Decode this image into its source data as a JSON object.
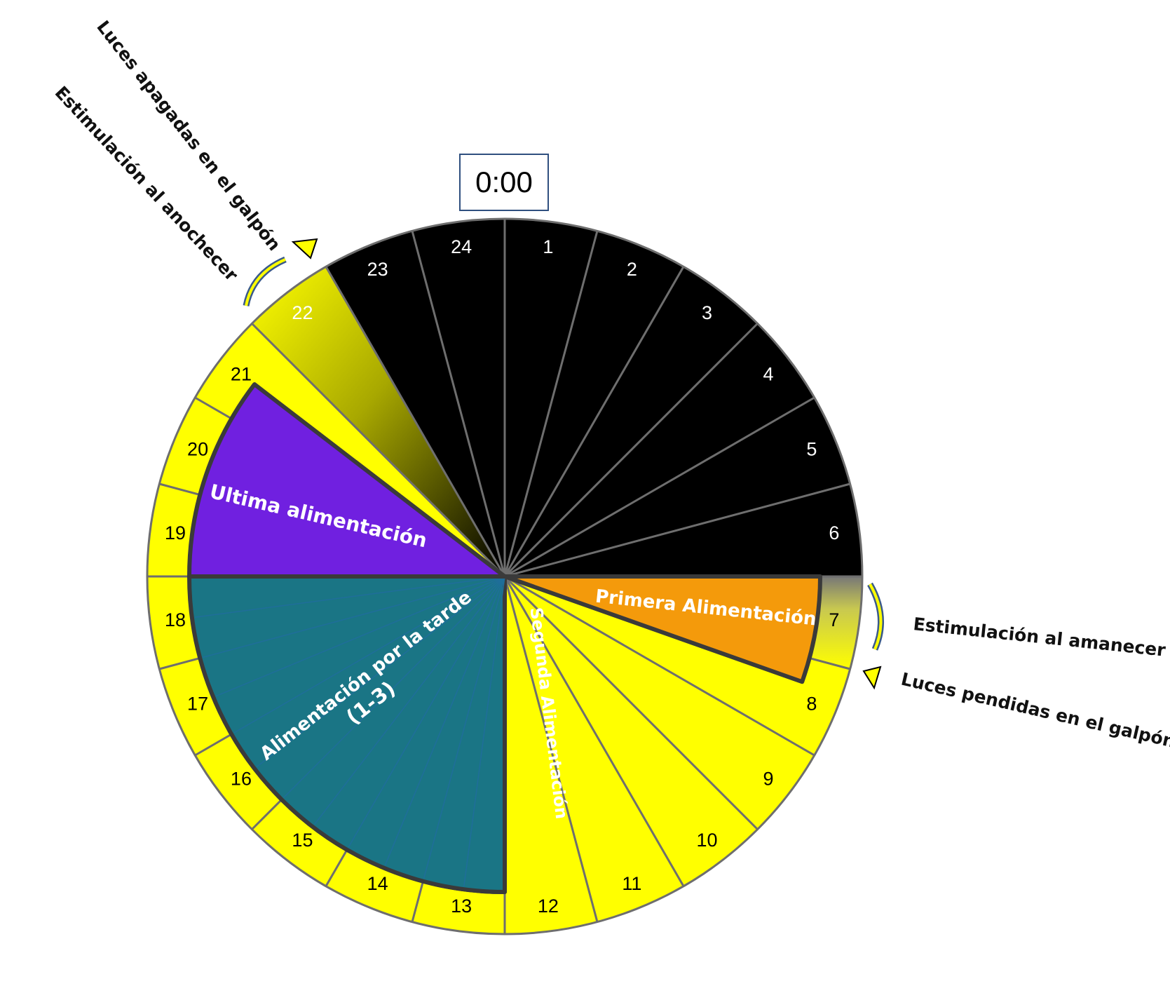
{
  "time_label": "0:00",
  "hours": [
    "1",
    "2",
    "3",
    "4",
    "5",
    "6",
    "7",
    "8",
    "9",
    "10",
    "11",
    "12",
    "13",
    "14",
    "15",
    "16",
    "17",
    "18",
    "19",
    "20",
    "21",
    "22",
    "23",
    "24"
  ],
  "hour_states": {
    "dark": [
      "1",
      "2",
      "3",
      "4",
      "5",
      "6",
      "23",
      "24"
    ],
    "dawn": [
      "7"
    ],
    "dusk": [
      "22"
    ],
    "light": [
      "8",
      "9",
      "10",
      "11",
      "12",
      "13",
      "14",
      "15",
      "16",
      "17",
      "18",
      "19",
      "20",
      "21"
    ]
  },
  "feedings": [
    {
      "label": "Primera Alimentación",
      "start_hour": 6,
      "end_hour": 7.3,
      "color": "#f49a0b"
    },
    {
      "label": "Segunda Alimentación",
      "start_hour": 12,
      "end_hour": 12.85,
      "color": "#1a7a00"
    },
    {
      "label": "Alimentación por la tarde",
      "label_line2": "(1-3)",
      "start_hour": 12,
      "end_hour": 18,
      "color": "#1a7585"
    },
    {
      "label": "Ultima alimentación",
      "start_hour": 18,
      "end_hour": 20.5,
      "color": "#7020e0"
    }
  ],
  "annotations": {
    "dawn_stimulation": "Estimulación al amanecer",
    "lights_on": "Luces pendidas en el galpón",
    "dusk_stimulation": "Estimulación al anochecer",
    "lights_off": "Luces apagadas en el galpón"
  },
  "colors": {
    "dark": "#000000",
    "light": "#ffff00",
    "divider": "#6e6e6e",
    "outline": "#3a3a3a",
    "arrow": "#3a5a8a"
  }
}
